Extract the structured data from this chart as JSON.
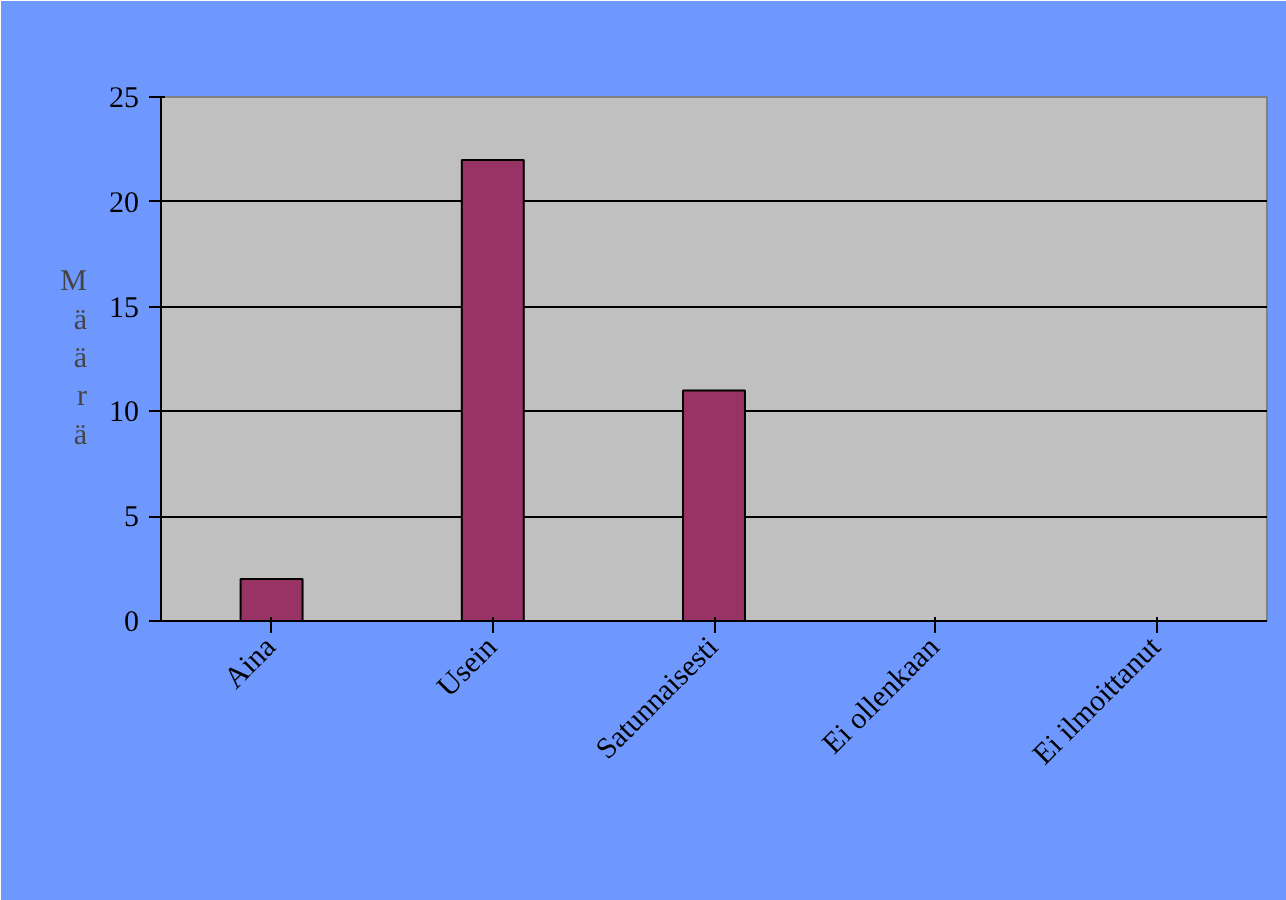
{
  "chart_data": {
    "type": "bar",
    "ylabel": "Määrä",
    "categories": [
      "Aina",
      "Usein",
      "Satunnaisesti",
      "Ei ollenkaan",
      "Ei ilmoittanut"
    ],
    "values": [
      2,
      22,
      11,
      0,
      0
    ],
    "color": "#993366",
    "ylim": [
      0,
      25
    ],
    "yticks": [
      0,
      5,
      10,
      15,
      20,
      25
    ],
    "grid": "y"
  }
}
